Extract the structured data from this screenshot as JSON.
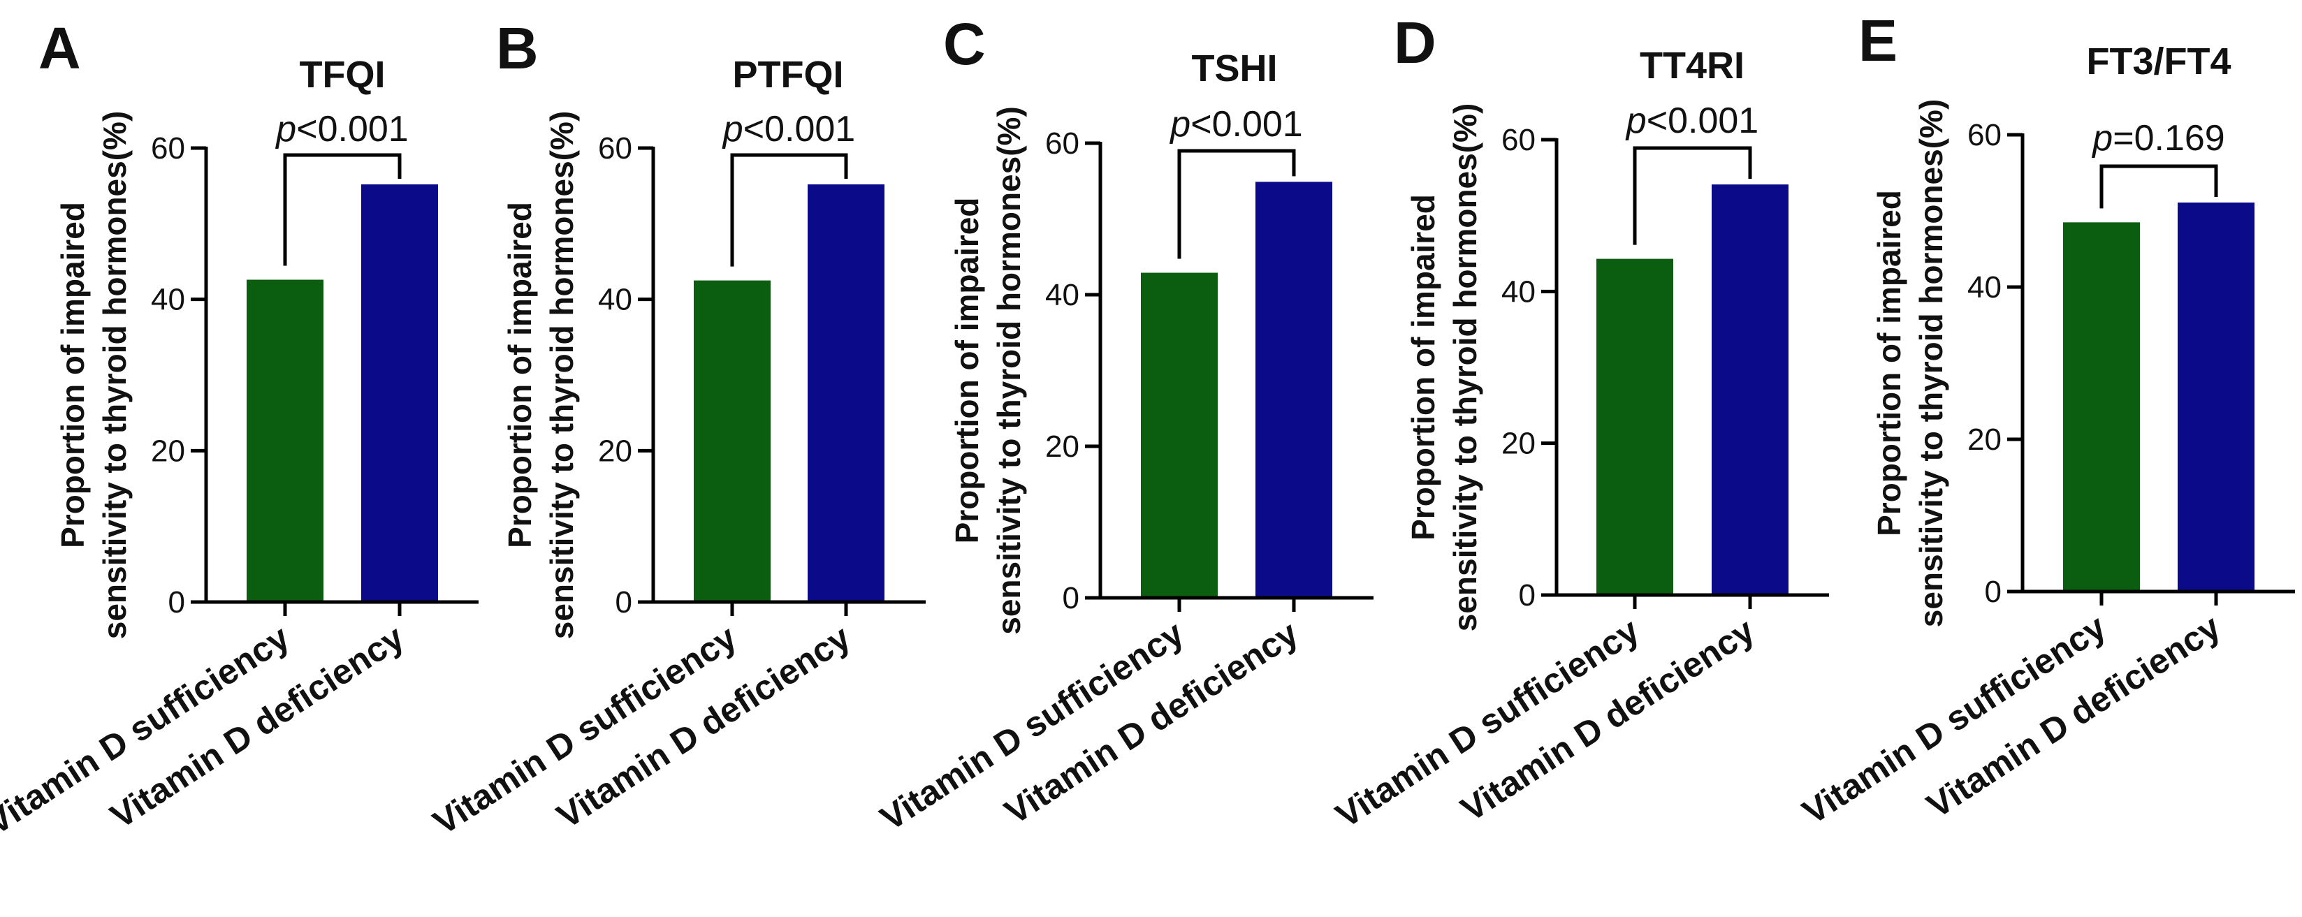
{
  "chart_data": [
    {
      "type": "bar",
      "panel": "A",
      "title": "TFQI",
      "ylabel": [
        "Proportion of impaired",
        "sensitivity to thyroid hormones(%)"
      ],
      "ylim": [
        0,
        60
      ],
      "yticks": [
        0,
        20,
        40,
        60
      ],
      "categories": [
        "Vitamin D sufficiency",
        "Vitamin D deficiency"
      ],
      "values": [
        42.6,
        55.2
      ],
      "colors": [
        "#0b5e0f",
        "#0b0b8a"
      ],
      "annotation": {
        "prefix": "p",
        "text": "<0.001"
      }
    },
    {
      "type": "bar",
      "panel": "B",
      "title": "PTFQI",
      "ylabel": [
        "Proportion of impaired",
        "sensitivity to thyroid hormones(%)"
      ],
      "ylim": [
        0,
        60
      ],
      "yticks": [
        0,
        20,
        40,
        60
      ],
      "categories": [
        "Vitamin D sufficiency",
        "Vitamin D deficiency"
      ],
      "values": [
        42.5,
        55.2
      ],
      "colors": [
        "#0b5e0f",
        "#0b0b8a"
      ],
      "annotation": {
        "prefix": "p",
        "text": "<0.001"
      }
    },
    {
      "type": "bar",
      "panel": "C",
      "title": "TSHI",
      "ylabel": [
        "Proportion of impaired",
        "sensitivity to thyroid hormones(%)"
      ],
      "ylim": [
        0,
        60
      ],
      "yticks": [
        0,
        20,
        40,
        60
      ],
      "categories": [
        "Vitamin D sufficiency",
        "Vitamin D deficiency"
      ],
      "values": [
        42.9,
        54.9
      ],
      "colors": [
        "#0b5e0f",
        "#0b0b8a"
      ],
      "annotation": {
        "prefix": "p",
        "text": "<0.001"
      }
    },
    {
      "type": "bar",
      "panel": "D",
      "title": "TT4RI",
      "ylabel": [
        "Proportion of impaired",
        "sensitivity to thyroid hormones(%)"
      ],
      "ylim": [
        0,
        60
      ],
      "yticks": [
        0,
        20,
        40,
        60
      ],
      "categories": [
        "Vitamin D sufficiency",
        "Vitamin D deficiency"
      ],
      "values": [
        44.3,
        54.1
      ],
      "colors": [
        "#0b5e0f",
        "#0b0b8a"
      ],
      "annotation": {
        "prefix": "p",
        "text": "<0.001"
      }
    },
    {
      "type": "bar",
      "panel": "E",
      "title": "FT3/FT4",
      "ylabel": [
        "Proportion of impaired",
        "sensitivity to thyroid hormones(%)"
      ],
      "ylim": [
        0,
        60
      ],
      "yticks": [
        0,
        20,
        40,
        60
      ],
      "categories": [
        "Vitamin D sufficiency",
        "Vitamin D deficiency"
      ],
      "values": [
        48.5,
        51.1
      ],
      "colors": [
        "#0b5e0f",
        "#0b0b8a"
      ],
      "annotation": {
        "prefix": "p",
        "text": "=0.169"
      }
    }
  ]
}
